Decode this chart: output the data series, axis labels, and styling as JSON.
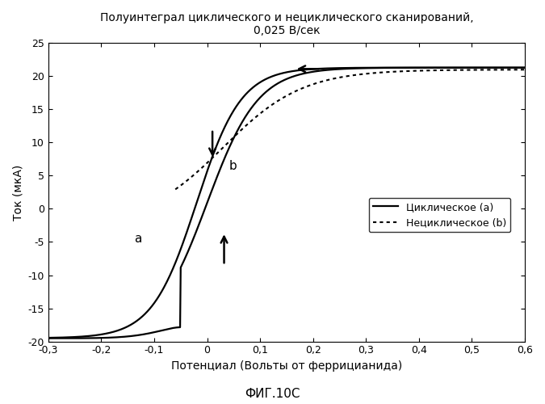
{
  "title_line1": "Полуинтеграл циклического и нециклического сканирований,",
  "title_line2": "0,025 В/сек",
  "xlabel": "Потенциал (Вольты от феррицианида)",
  "ylabel": "Ток (мкА)",
  "fig_label": "ФИГ.10С",
  "xlim": [
    -0.3,
    0.6
  ],
  "ylim": [
    -20,
    25
  ],
  "xticks": [
    -0.3,
    -0.2,
    -0.1,
    0.0,
    0.1,
    0.2,
    0.3,
    0.4,
    0.5,
    0.6
  ],
  "yticks": [
    -20,
    -15,
    -10,
    -5,
    0,
    5,
    10,
    15,
    20,
    25
  ],
  "legend_cyclic": "Циклическое (a)",
  "legend_noncyclic": "Нециклическое (b)",
  "background_color": "#ffffff",
  "line_color": "#000000"
}
